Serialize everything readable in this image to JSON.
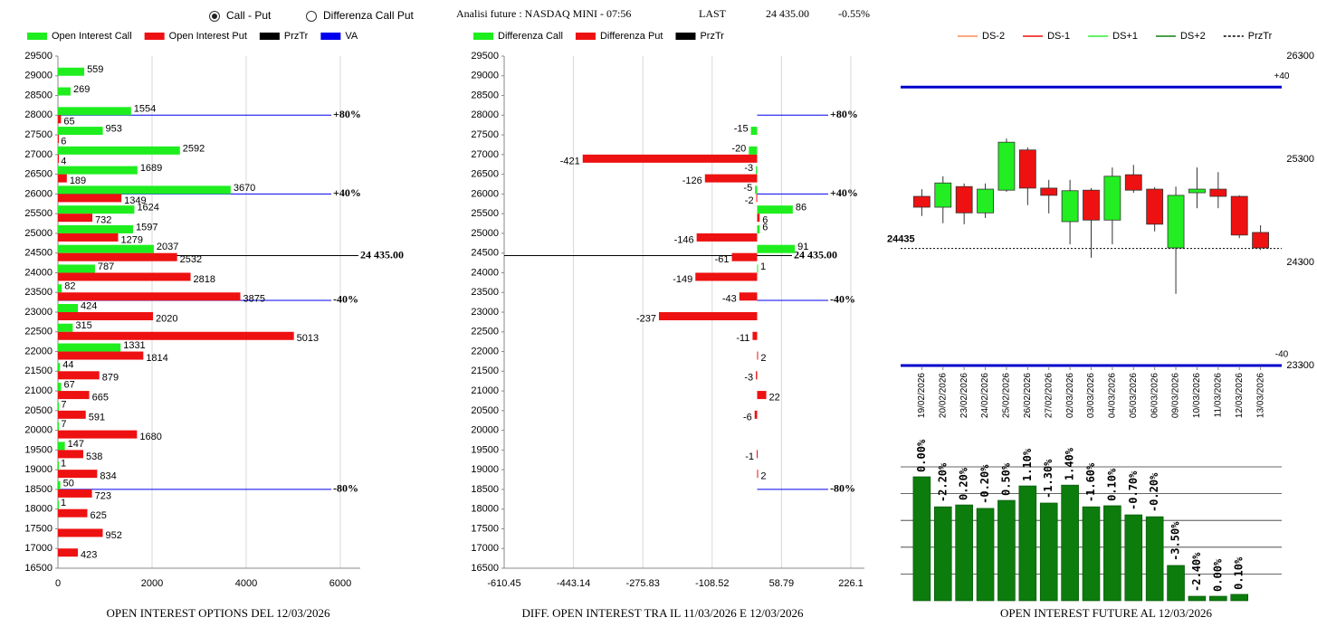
{
  "header": {
    "options": [
      "Call - Put",
      "Differenza Call Put"
    ],
    "selected": 0,
    "title": "Analisi future : NASDAQ MINI - 07:56",
    "last_label": "LAST",
    "change": "-0.55%"
  },
  "last_price": {
    "value": 24435,
    "label": "24 435.00"
  },
  "strike_levels": [
    {
      "value": 28000,
      "label": "+80%"
    },
    {
      "value": 26000,
      "label": "+40%"
    },
    {
      "value": 23300,
      "label": "-40%"
    },
    {
      "value": 18500,
      "label": "-80%"
    }
  ],
  "chart_data": [
    {
      "type": "hbar",
      "title": "OPEN INTEREST OPTIONS DEL 12/03/2026",
      "y": [
        29000,
        28500,
        28000,
        27500,
        27000,
        26500,
        26000,
        25500,
        25000,
        24500,
        24000,
        23500,
        23000,
        22500,
        22000,
        21500,
        21000,
        20500,
        20000,
        19500,
        19000,
        18500,
        18000,
        17500,
        17000
      ],
      "ylim": [
        16500,
        29500
      ],
      "yticks": [
        29500,
        29000,
        28500,
        28000,
        27500,
        27000,
        26500,
        26000,
        25500,
        25000,
        24500,
        24000,
        23500,
        23000,
        22500,
        22000,
        21500,
        21000,
        20500,
        20000,
        19500,
        19000,
        18500,
        18000,
        17500,
        17000,
        16500
      ],
      "xlim": [
        0,
        6000
      ],
      "xticks": [
        0,
        2000,
        4000,
        6000
      ],
      "grid": true,
      "series": [
        {
          "name": "Open Interest Call",
          "color": "#1eee1e",
          "values": [
            559,
            269,
            1554,
            953,
            2592,
            1689,
            3670,
            1624,
            1597,
            2037,
            787,
            82,
            424,
            315,
            1331,
            44,
            67,
            7,
            7,
            147,
            1,
            50,
            1,
            null,
            null
          ]
        },
        {
          "name": "Open Interest Put",
          "color": "#ee1111",
          "values": [
            null,
            null,
            65,
            6,
            4,
            189,
            1349,
            732,
            1279,
            2532,
            2818,
            3875,
            2020,
            5013,
            1814,
            879,
            665,
            591,
            1680,
            538,
            834,
            723,
            625,
            952,
            423
          ]
        }
      ],
      "extra_legend": [
        {
          "name": "PrzTr",
          "color": "#000000"
        },
        {
          "name": "VA",
          "color": "#0000ee"
        }
      ]
    },
    {
      "type": "hbar",
      "title": "DIFF. OPEN INTEREST TRA IL 11/03/2026 E 12/03/2026",
      "y": [
        29000,
        28500,
        28000,
        27500,
        27000,
        26500,
        26000,
        25500,
        25000,
        24500,
        24000,
        23500,
        23000,
        22500,
        22000,
        21500,
        21000,
        20500,
        20000,
        19500,
        19000,
        18500,
        18000,
        17500,
        17000
      ],
      "ylim": [
        16500,
        29500
      ],
      "yticks": [
        29500,
        29000,
        28500,
        28000,
        27500,
        27000,
        26500,
        26000,
        25500,
        25000,
        24500,
        24000,
        23500,
        23000,
        22500,
        22000,
        21500,
        21000,
        20500,
        20000,
        19500,
        19000,
        18500,
        18000,
        17500,
        17000,
        16500
      ],
      "xlim": [
        -610.45,
        226.1
      ],
      "xticks": [
        -610.45,
        -443.14,
        -275.83,
        -108.52,
        58.79,
        226.1
      ],
      "grid": true,
      "series": [
        {
          "name": "Differenza Call",
          "color": "#1eee1e",
          "values": [
            null,
            null,
            null,
            -15,
            -20,
            -3,
            -5,
            86,
            6,
            91,
            1,
            null,
            null,
            null,
            null,
            null,
            null,
            null,
            null,
            null,
            null,
            null,
            null,
            null,
            null
          ]
        },
        {
          "name": "Differenza Put",
          "color": "#ee1111",
          "values": [
            null,
            null,
            null,
            null,
            -421,
            -126,
            -2,
            6,
            -146,
            -61,
            -149,
            -43,
            -237,
            -11,
            2,
            -3,
            22,
            -6,
            null,
            -1,
            2,
            null,
            null,
            null,
            null
          ]
        }
      ],
      "extra_legend": [
        {
          "name": "PrzTr",
          "color": "#000000"
        }
      ]
    },
    {
      "type": "candlestick",
      "x": [
        "19/02/2026",
        "20/02/2026",
        "23/02/2026",
        "24/02/2026",
        "25/02/2026",
        "26/02/2026",
        "27/02/2026",
        "02/03/2026",
        "03/03/2026",
        "04/03/2026",
        "05/03/2026",
        "06/03/2026",
        "09/03/2026",
        "10/03/2026",
        "11/03/2026",
        "12/03/2026",
        "13/03/2026"
      ],
      "open": [
        24940,
        24835,
        25035,
        24780,
        25000,
        25390,
        25020,
        24695,
        25000,
        24710,
        25150,
        25010,
        24440,
        24975,
        25010,
        24940,
        24590
      ],
      "high": [
        25010,
        25135,
        25065,
        25065,
        25500,
        25415,
        25100,
        25100,
        25020,
        25220,
        25245,
        25030,
        25035,
        25220,
        25175,
        24950,
        24660
      ],
      "low": [
        24750,
        24680,
        24670,
        24730,
        24985,
        24855,
        24775,
        24475,
        24345,
        24475,
        24975,
        24600,
        23995,
        24825,
        24825,
        24535,
        24420
      ],
      "close": [
        24835,
        25070,
        24780,
        25010,
        25465,
        25020,
        24950,
        24995,
        24710,
        25135,
        25000,
        24670,
        24950,
        25010,
        24940,
        24565,
        24440
      ],
      "ylim": [
        23300,
        26300
      ],
      "yticks": [
        23300,
        24300,
        25300,
        26300
      ],
      "up_color": "#22ee22",
      "down_color": "#ee1111",
      "level_color": "#0000cc",
      "levels": [
        {
          "value": 26000,
          "label": "+40"
        },
        {
          "value": 23300,
          "label": "-40"
        }
      ],
      "last": 24435,
      "legend": [
        {
          "name": "DS-2",
          "color": "#ff8c5a"
        },
        {
          "name": "DS-1",
          "color": "#ee1111"
        },
        {
          "name": "DS+1",
          "color": "#33ee33"
        },
        {
          "name": "DS+2",
          "color": "#108010"
        },
        {
          "name": "PrzTr",
          "color": "#000000",
          "dash": true
        }
      ]
    },
    {
      "type": "bar",
      "title": "OPEN INTEREST FUTURE AL 12/03/2026",
      "color": "#0c7c0c",
      "values": [
        4.63,
        3.51,
        3.58,
        3.45,
        3.75,
        4.29,
        3.65,
        4.32,
        3.51,
        3.55,
        3.21,
        3.14,
        1.32,
        0.17,
        0.17,
        0.24
      ],
      "labels": [
        "0.00%",
        "-2.20%",
        "0.20%",
        "-0.20%",
        "0.50%",
        "1.10%",
        "-1.30%",
        "1.40%",
        "-1.60%",
        "0.10%",
        "-0.70%",
        "-0.20%",
        "-3.50%",
        "-2.40%",
        "0.00%",
        "0.10%"
      ],
      "ylim": [
        0,
        5
      ],
      "gridlines": [
        1,
        2,
        3,
        4,
        5
      ]
    }
  ]
}
